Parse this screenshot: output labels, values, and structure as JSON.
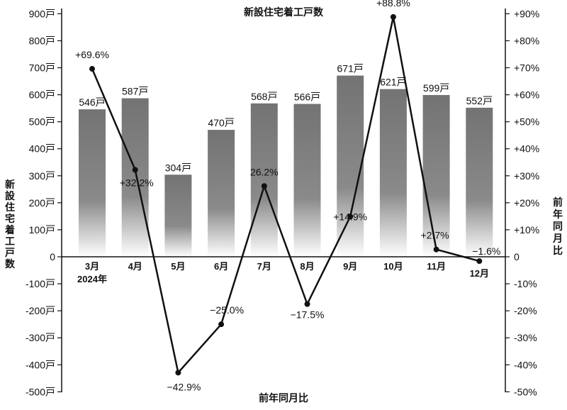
{
  "chart_data": {
    "type": "bar+line",
    "title": "新設住宅着工戸数",
    "ylabel_left": "新設住宅着工戸数",
    "ylabel_right": "前年同月比",
    "xlabel": "前年同月比",
    "categories": [
      "3月",
      "4月",
      "5月",
      "6月",
      "7月",
      "8月",
      "9月",
      "10月",
      "11月",
      "12月"
    ],
    "year_label": "2024年",
    "bars": {
      "values": [
        546,
        587,
        304,
        470,
        568,
        566,
        671,
        621,
        599,
        552
      ],
      "labels": [
        "546戸",
        "587戸",
        "304戸",
        "470戸",
        "568戸",
        "566戸",
        "671戸",
        "621戸",
        "599戸",
        "552戸"
      ]
    },
    "line": {
      "values": [
        69.6,
        32.2,
        -42.9,
        -25.0,
        26.2,
        -17.5,
        14.9,
        88.8,
        2.7,
        -1.6
      ],
      "labels": [
        "+69.6%",
        "+32.2%",
        "−42.9%",
        "−25.0%",
        "26.2%",
        "−17.5%",
        "+14.9%",
        "+88.8%",
        "+2.7%",
        "−1.6%"
      ]
    },
    "left_axis": {
      "ylim": [
        -500,
        900
      ],
      "ticks": [
        900,
        800,
        700,
        600,
        500,
        400,
        300,
        200,
        100,
        0,
        -100,
        -200,
        -300,
        -400,
        -500
      ],
      "tick_labels": [
        "900戸",
        "800戸",
        "700戸",
        "600戸",
        "500戸",
        "400戸",
        "300戸",
        "200戸",
        "100戸",
        "0",
        "-100戸",
        "-200戸",
        "-300戸",
        "-400戸",
        "-500戸"
      ]
    },
    "right_axis": {
      "ylim": [
        -50,
        90
      ],
      "ticks": [
        90,
        80,
        70,
        60,
        50,
        40,
        30,
        20,
        10,
        0,
        -10,
        -20,
        -30,
        -40,
        -50
      ],
      "tick_labels": [
        "+90%",
        "+80%",
        "+70%",
        "+60%",
        "+50%",
        "+40%",
        "+30%",
        "+20%",
        "+10%",
        "0",
        "-10%",
        "-20%",
        "-30%",
        "-40%",
        "-50%"
      ]
    },
    "grid": false,
    "colors": {
      "bar_top": "#737373",
      "bar_bottom": "#ffffff",
      "line": "#111111",
      "axis": "#111111"
    }
  }
}
